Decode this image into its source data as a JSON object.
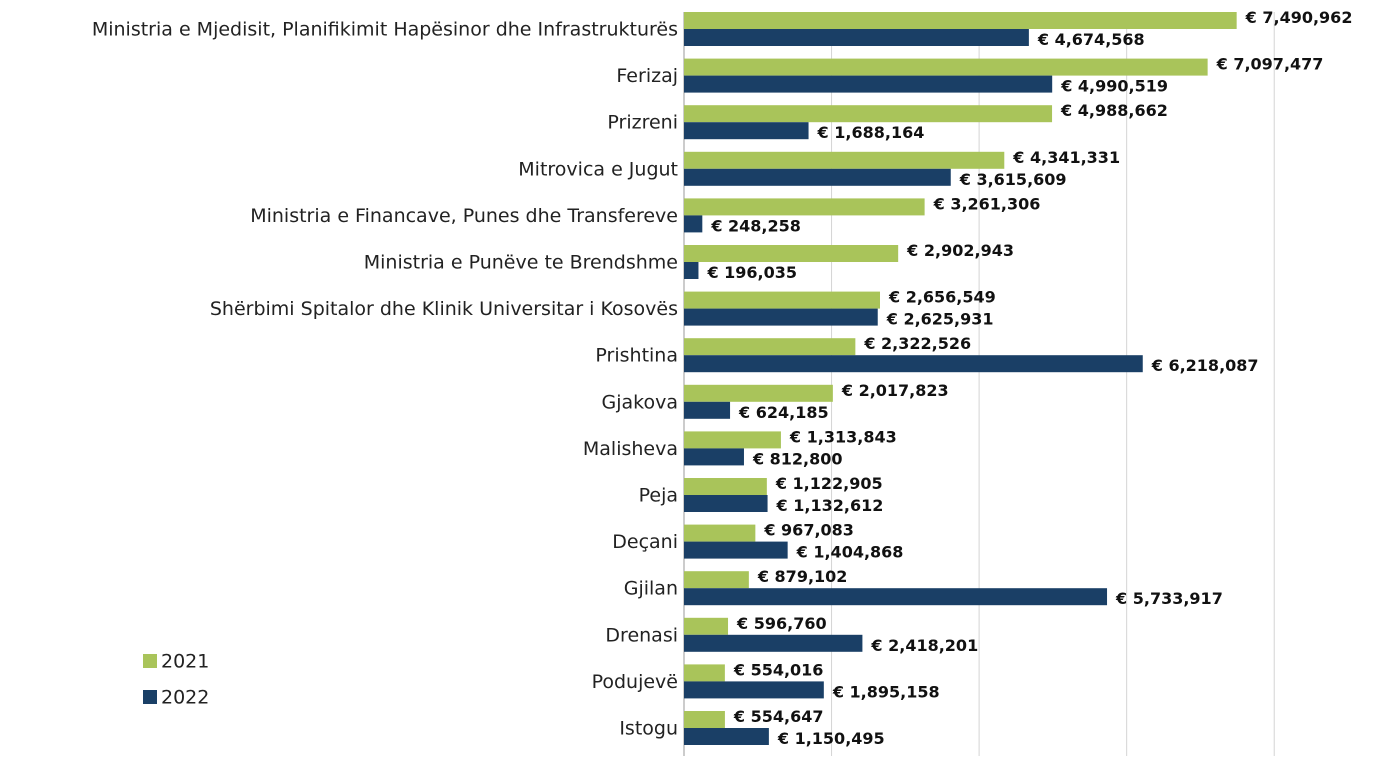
{
  "chart_data": {
    "type": "barh",
    "categories": [
      "Ministria e Mjedisit, Planifikimit Hapësinor dhe Infrastrukturës",
      "Ferizaj",
      "Prizreni",
      "Mitrovica e Jugut",
      "Ministria e Financave, Punes dhe Transfereve",
      "Ministria e Punëve te Brendshme",
      "Shërbimi Spitalor dhe Klinik Universitar i Kosovës",
      "Prishtina",
      "Gjakova",
      "Malisheva",
      "Peja",
      "Deçani",
      "Gjilan",
      "Drenasi",
      "Podujevë",
      "Istogu"
    ],
    "series": [
      {
        "name": "2021",
        "color": "#a9c45a",
        "values": [
          7490962,
          7097477,
          4988662,
          4341331,
          3261306,
          2902943,
          2656549,
          2322526,
          2017823,
          1313843,
          1122905,
          967083,
          879102,
          596760,
          554016,
          554647
        ],
        "value_labels": [
          "€ 7,490,962",
          "€ 7,097,477",
          "€ 4,988,662",
          "€ 4,341,331",
          "€ 3,261,306",
          "€ 2,902,943",
          "€ 2,656,549",
          "€ 2,322,526",
          "€ 2,017,823",
          "€ 1,313,843",
          "€ 1,122,905",
          "€ 967,083",
          "€ 879,102",
          "€ 596,760",
          "€ 554,016",
          "€ 554,647"
        ]
      },
      {
        "name": "2022",
        "color": "#1a3f66",
        "values": [
          4674568,
          4990519,
          1688164,
          3615609,
          248258,
          196035,
          2625931,
          6218087,
          624185,
          812800,
          1132612,
          1404868,
          5733917,
          2418201,
          1895158,
          1150495
        ],
        "value_labels": [
          "€ 4,674,568",
          "€ 4,990,519",
          "€ 1,688,164",
          "€ 3,615,609",
          "€ 248,258",
          "€ 196,035",
          "€ 2,625,931",
          "€ 6,218,087",
          "€ 624,185",
          "€ 812,800",
          "€ 1,132,612",
          "€ 1,404,868",
          "€ 5,733,917",
          "€ 2,418,201",
          "€ 1,895,158",
          "€ 1,150,495"
        ]
      }
    ],
    "xlim": [
      0,
      9000000
    ],
    "xticks": [
      0,
      2000000,
      4000000,
      6000000,
      8000000
    ],
    "grid": true,
    "legend": "lower left"
  }
}
